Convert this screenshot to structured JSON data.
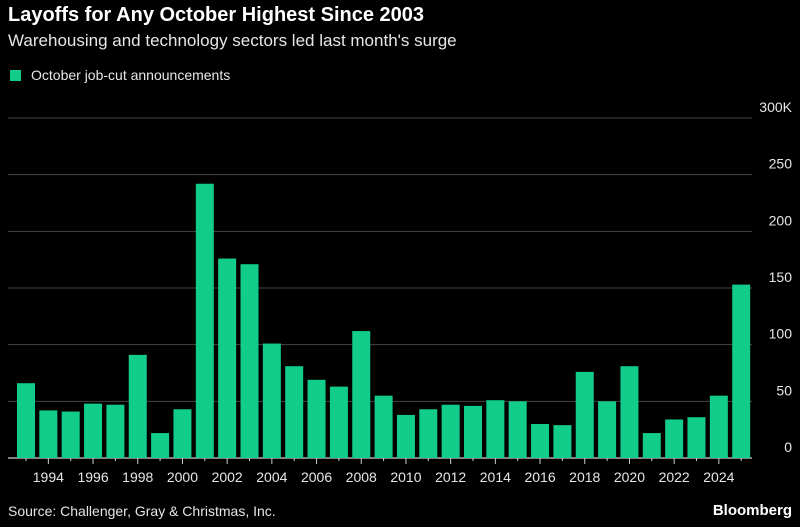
{
  "title": "Layoffs for Any October Highest Since 2003",
  "subtitle": "Warehousing and technology sectors led last month's surge",
  "source": "Source: Challenger, Gray & Christmas, Inc.",
  "brand": "Bloomberg",
  "colors": {
    "bar": "#12cc8a",
    "grid": "#444444",
    "background": "#000000"
  },
  "chart_data": {
    "type": "bar",
    "title": "Layoffs for Any October Highest Since 2003",
    "legend": "top-left",
    "grid": true,
    "categories": [
      1993,
      1994,
      1995,
      1996,
      1997,
      1998,
      1999,
      2000,
      2001,
      2002,
      2003,
      2004,
      2005,
      2006,
      2007,
      2008,
      2009,
      2010,
      2011,
      2012,
      2013,
      2014,
      2015,
      2016,
      2017,
      2018,
      2019,
      2020,
      2021,
      2022,
      2023,
      2024,
      2025
    ],
    "series": [
      {
        "name": "October job-cut announcements",
        "values": [
          66,
          42,
          41,
          48,
          47,
          91,
          22,
          43,
          242,
          176,
          171,
          101,
          81,
          69,
          63,
          112,
          55,
          38,
          43,
          47,
          46,
          51,
          50,
          30,
          29,
          76,
          50,
          81,
          22,
          34,
          36,
          55,
          153
        ]
      }
    ],
    "ylim": [
      0,
      300
    ],
    "yticks": [
      0,
      50,
      100,
      150,
      200,
      250,
      300
    ],
    "ytick_labels": [
      "0",
      "50",
      "100",
      "150",
      "200",
      "250",
      "300K"
    ],
    "xtick_labels": [
      "1994",
      "1996",
      "1998",
      "2000",
      "2002",
      "2004",
      "2006",
      "2008",
      "2010",
      "2012",
      "2014",
      "2016",
      "2018",
      "2020",
      "2022",
      "2024"
    ],
    "xlabel": "",
    "ylabel": ""
  }
}
